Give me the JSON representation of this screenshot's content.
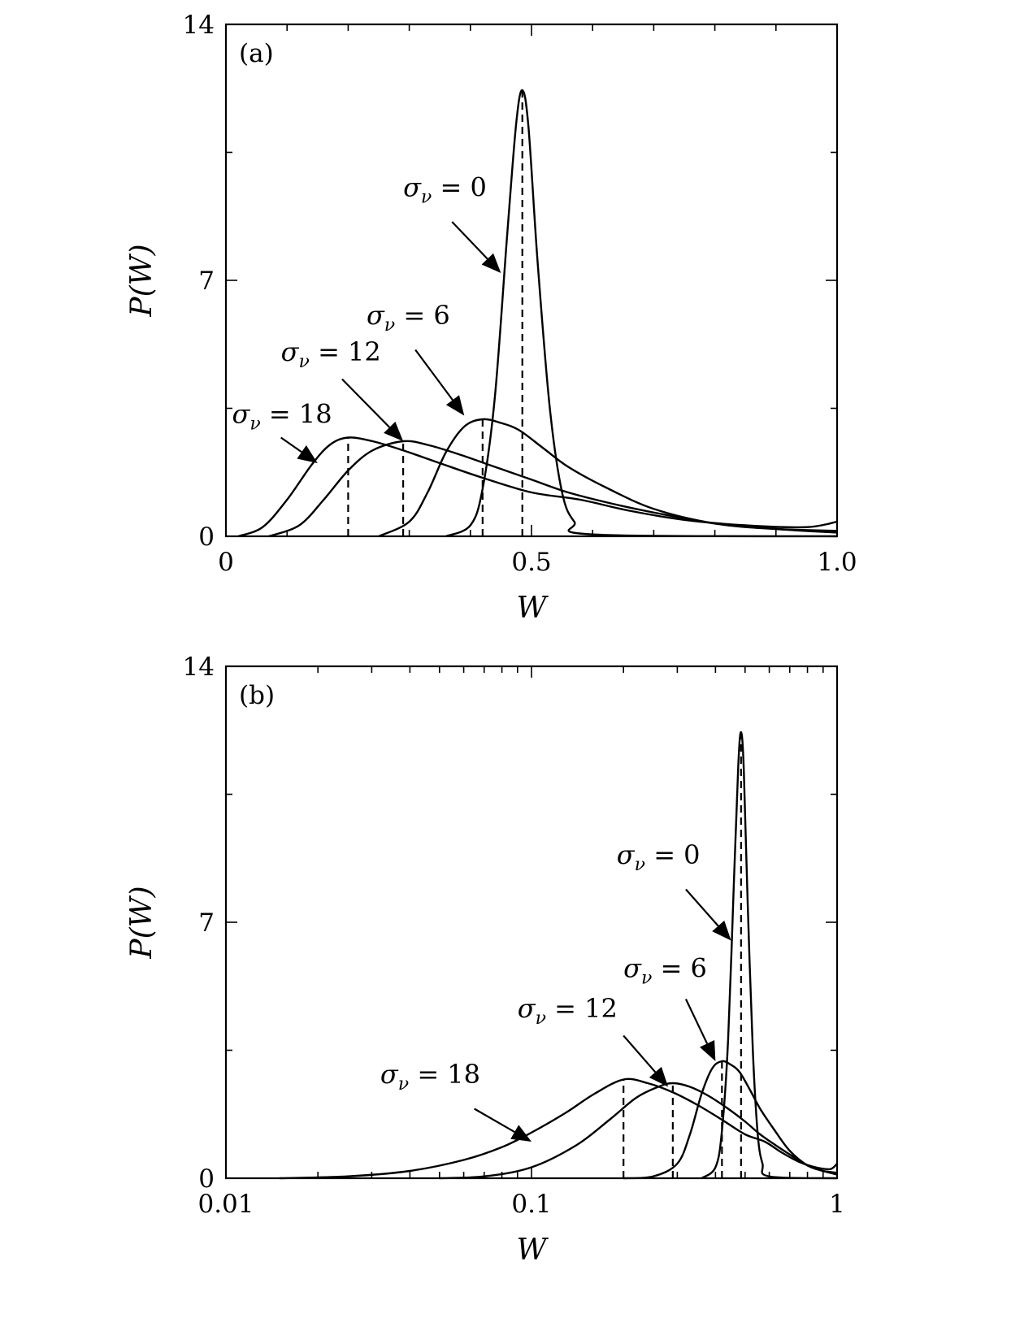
{
  "chart_data": [
    {
      "panel_label": "(a)",
      "type": "line",
      "xlabel": "W",
      "ylabel": "P(W)",
      "xscale": "linear",
      "xlim": [
        0,
        1.0
      ],
      "ylim": [
        0,
        14
      ],
      "xticklabels": [
        "0",
        "0.5",
        "1.0"
      ],
      "yticklabels": [
        "0",
        "7",
        "14"
      ],
      "grid": false,
      "series": [
        {
          "sigma": "0",
          "peak_w": 0.485,
          "peak_p": 12.2,
          "points": [
            [
              0.36,
              0
            ],
            [
              0.4,
              0.3
            ],
            [
              0.42,
              1.3
            ],
            [
              0.44,
              3.8
            ],
            [
              0.46,
              8.2
            ],
            [
              0.475,
              11.3
            ],
            [
              0.485,
              12.2
            ],
            [
              0.495,
              11.2
            ],
            [
              0.51,
              7.5
            ],
            [
              0.53,
              3.5
            ],
            [
              0.55,
              1.2
            ],
            [
              0.57,
              0.4
            ],
            [
              0.6,
              0.05
            ],
            [
              1.0,
              0
            ]
          ]
        },
        {
          "sigma": "6",
          "peak_w": 0.42,
          "peak_p": 3.2,
          "points": [
            [
              0.25,
              0
            ],
            [
              0.3,
              0.4
            ],
            [
              0.33,
              1.2
            ],
            [
              0.36,
              2.3
            ],
            [
              0.39,
              3.0
            ],
            [
              0.42,
              3.2
            ],
            [
              0.45,
              3.1
            ],
            [
              0.48,
              2.9
            ],
            [
              0.52,
              2.4
            ],
            [
              0.56,
              1.9
            ],
            [
              0.62,
              1.35
            ],
            [
              0.7,
              0.75
            ],
            [
              0.8,
              0.35
            ],
            [
              0.9,
              0.2
            ],
            [
              1.0,
              0.15
            ]
          ]
        },
        {
          "sigma": "12",
          "peak_w": 0.29,
          "peak_p": 2.6,
          "points": [
            [
              0.07,
              0
            ],
            [
              0.12,
              0.3
            ],
            [
              0.16,
              1.0
            ],
            [
              0.2,
              1.8
            ],
            [
              0.24,
              2.35
            ],
            [
              0.29,
              2.6
            ],
            [
              0.33,
              2.5
            ],
            [
              0.38,
              2.25
            ],
            [
              0.44,
              1.9
            ],
            [
              0.5,
              1.55
            ],
            [
              0.56,
              1.2
            ],
            [
              0.63,
              0.9
            ],
            [
              0.7,
              0.65
            ],
            [
              0.8,
              0.35
            ],
            [
              0.9,
              0.2
            ],
            [
              1.0,
              0.1
            ]
          ]
        },
        {
          "sigma": "18",
          "peak_w": 0.2,
          "peak_p": 2.7,
          "points": [
            [
              0.02,
              0
            ],
            [
              0.06,
              0.25
            ],
            [
              0.1,
              1.0
            ],
            [
              0.14,
              1.95
            ],
            [
              0.17,
              2.5
            ],
            [
              0.2,
              2.7
            ],
            [
              0.24,
              2.6
            ],
            [
              0.29,
              2.35
            ],
            [
              0.35,
              2.0
            ],
            [
              0.42,
              1.6
            ],
            [
              0.5,
              1.2
            ],
            [
              0.58,
              1.0
            ],
            [
              0.66,
              0.7
            ],
            [
              0.75,
              0.45
            ],
            [
              0.85,
              0.3
            ],
            [
              0.95,
              0.25
            ],
            [
              1.0,
              0.4
            ]
          ]
        }
      ],
      "annotations": [
        {
          "sigma": "0",
          "value": "0",
          "text_w": 0.29,
          "text_p": 9.3,
          "arrow_from_w": 0.37,
          "arrow_from_p": 8.6,
          "arrow_to_w": 0.45,
          "arrow_to_p": 7.2
        },
        {
          "sigma": "6",
          "value": "6",
          "text_w": 0.23,
          "text_p": 5.8,
          "arrow_from_w": 0.31,
          "arrow_from_p": 5.1,
          "arrow_to_w": 0.39,
          "arrow_to_p": 3.3
        },
        {
          "sigma": "12",
          "value": "12",
          "text_w": 0.09,
          "text_p": 4.8,
          "arrow_from_w": 0.19,
          "arrow_from_p": 4.3,
          "arrow_to_w": 0.29,
          "arrow_to_p": 2.6
        },
        {
          "sigma": "18",
          "value": "18",
          "text_w": 0.01,
          "text_p": 3.1,
          "arrow_from_w": 0.09,
          "arrow_from_p": 2.7,
          "arrow_to_w": 0.15,
          "arrow_to_p": 2.0
        }
      ]
    },
    {
      "panel_label": "(b)",
      "type": "line",
      "xlabel": "W",
      "ylabel": "P(W)",
      "xscale": "log",
      "xlim": [
        0.01,
        1
      ],
      "ylim": [
        0,
        14
      ],
      "xticklabels": [
        "0.01",
        "0.1",
        "1"
      ],
      "yticklabels": [
        "0",
        "7",
        "14"
      ],
      "grid": false,
      "series": [
        {
          "sigma": "0",
          "peak_w": 0.485,
          "peak_p": 12.2,
          "points": [
            [
              0.36,
              0
            ],
            [
              0.4,
              0.3
            ],
            [
              0.42,
              1.3
            ],
            [
              0.44,
              3.8
            ],
            [
              0.46,
              8.2
            ],
            [
              0.475,
              11.3
            ],
            [
              0.485,
              12.2
            ],
            [
              0.495,
              11.2
            ],
            [
              0.51,
              7.5
            ],
            [
              0.53,
              3.5
            ],
            [
              0.55,
              1.2
            ],
            [
              0.57,
              0.4
            ],
            [
              0.6,
              0.05
            ],
            [
              1.0,
              0
            ]
          ]
        },
        {
          "sigma": "6",
          "peak_w": 0.42,
          "peak_p": 3.2,
          "points": [
            [
              0.2,
              0
            ],
            [
              0.25,
              0.05
            ],
            [
              0.3,
              0.4
            ],
            [
              0.33,
              1.2
            ],
            [
              0.36,
              2.3
            ],
            [
              0.39,
              3.0
            ],
            [
              0.42,
              3.2
            ],
            [
              0.45,
              3.1
            ],
            [
              0.48,
              2.9
            ],
            [
              0.52,
              2.4
            ],
            [
              0.56,
              1.9
            ],
            [
              0.62,
              1.35
            ],
            [
              0.7,
              0.75
            ],
            [
              0.8,
              0.35
            ],
            [
              0.9,
              0.2
            ],
            [
              1.0,
              0.15
            ]
          ]
        },
        {
          "sigma": "12",
          "peak_w": 0.29,
          "peak_p": 2.6,
          "points": [
            [
              0.05,
              0
            ],
            [
              0.07,
              0.05
            ],
            [
              0.1,
              0.3
            ],
            [
              0.14,
              0.9
            ],
            [
              0.18,
              1.6
            ],
            [
              0.22,
              2.2
            ],
            [
              0.26,
              2.5
            ],
            [
              0.29,
              2.6
            ],
            [
              0.33,
              2.5
            ],
            [
              0.38,
              2.25
            ],
            [
              0.44,
              1.9
            ],
            [
              0.5,
              1.55
            ],
            [
              0.56,
              1.2
            ],
            [
              0.63,
              0.9
            ],
            [
              0.7,
              0.65
            ],
            [
              0.8,
              0.35
            ],
            [
              0.9,
              0.2
            ],
            [
              1.0,
              0.1
            ]
          ]
        },
        {
          "sigma": "18",
          "peak_w": 0.2,
          "peak_p": 2.7,
          "points": [
            [
              0.015,
              0
            ],
            [
              0.025,
              0.05
            ],
            [
              0.04,
              0.2
            ],
            [
              0.06,
              0.5
            ],
            [
              0.08,
              0.85
            ],
            [
              0.1,
              1.25
            ],
            [
              0.13,
              1.8
            ],
            [
              0.16,
              2.3
            ],
            [
              0.2,
              2.7
            ],
            [
              0.24,
              2.6
            ],
            [
              0.29,
              2.35
            ],
            [
              0.35,
              2.0
            ],
            [
              0.42,
              1.6
            ],
            [
              0.5,
              1.2
            ],
            [
              0.58,
              1.0
            ],
            [
              0.66,
              0.7
            ],
            [
              0.75,
              0.45
            ],
            [
              0.85,
              0.3
            ],
            [
              0.95,
              0.25
            ],
            [
              1.0,
              0.4
            ]
          ]
        }
      ],
      "annotations": [
        {
          "sigma": "0",
          "value": "0",
          "text_w": 0.19,
          "text_p": 8.6,
          "arrow_from_w": 0.32,
          "arrow_from_p": 7.9,
          "arrow_to_w": 0.45,
          "arrow_to_p": 6.5
        },
        {
          "sigma": "6",
          "value": "6",
          "text_w": 0.2,
          "text_p": 5.5,
          "arrow_from_w": 0.32,
          "arrow_from_p": 4.9,
          "arrow_to_w": 0.4,
          "arrow_to_p": 3.2
        },
        {
          "sigma": "12",
          "value": "12",
          "text_w": 0.09,
          "text_p": 4.4,
          "arrow_from_w": 0.2,
          "arrow_from_p": 3.9,
          "arrow_to_w": 0.28,
          "arrow_to_p": 2.5
        },
        {
          "sigma": "18",
          "value": "18",
          "text_w": 0.032,
          "text_p": 2.6,
          "arrow_from_w": 0.065,
          "arrow_from_p": 1.9,
          "arrow_to_w": 0.1,
          "arrow_to_p": 1.0
        }
      ]
    }
  ],
  "sigma_symbol": "σ",
  "sigma_subscript": "ν",
  "equals": " = "
}
